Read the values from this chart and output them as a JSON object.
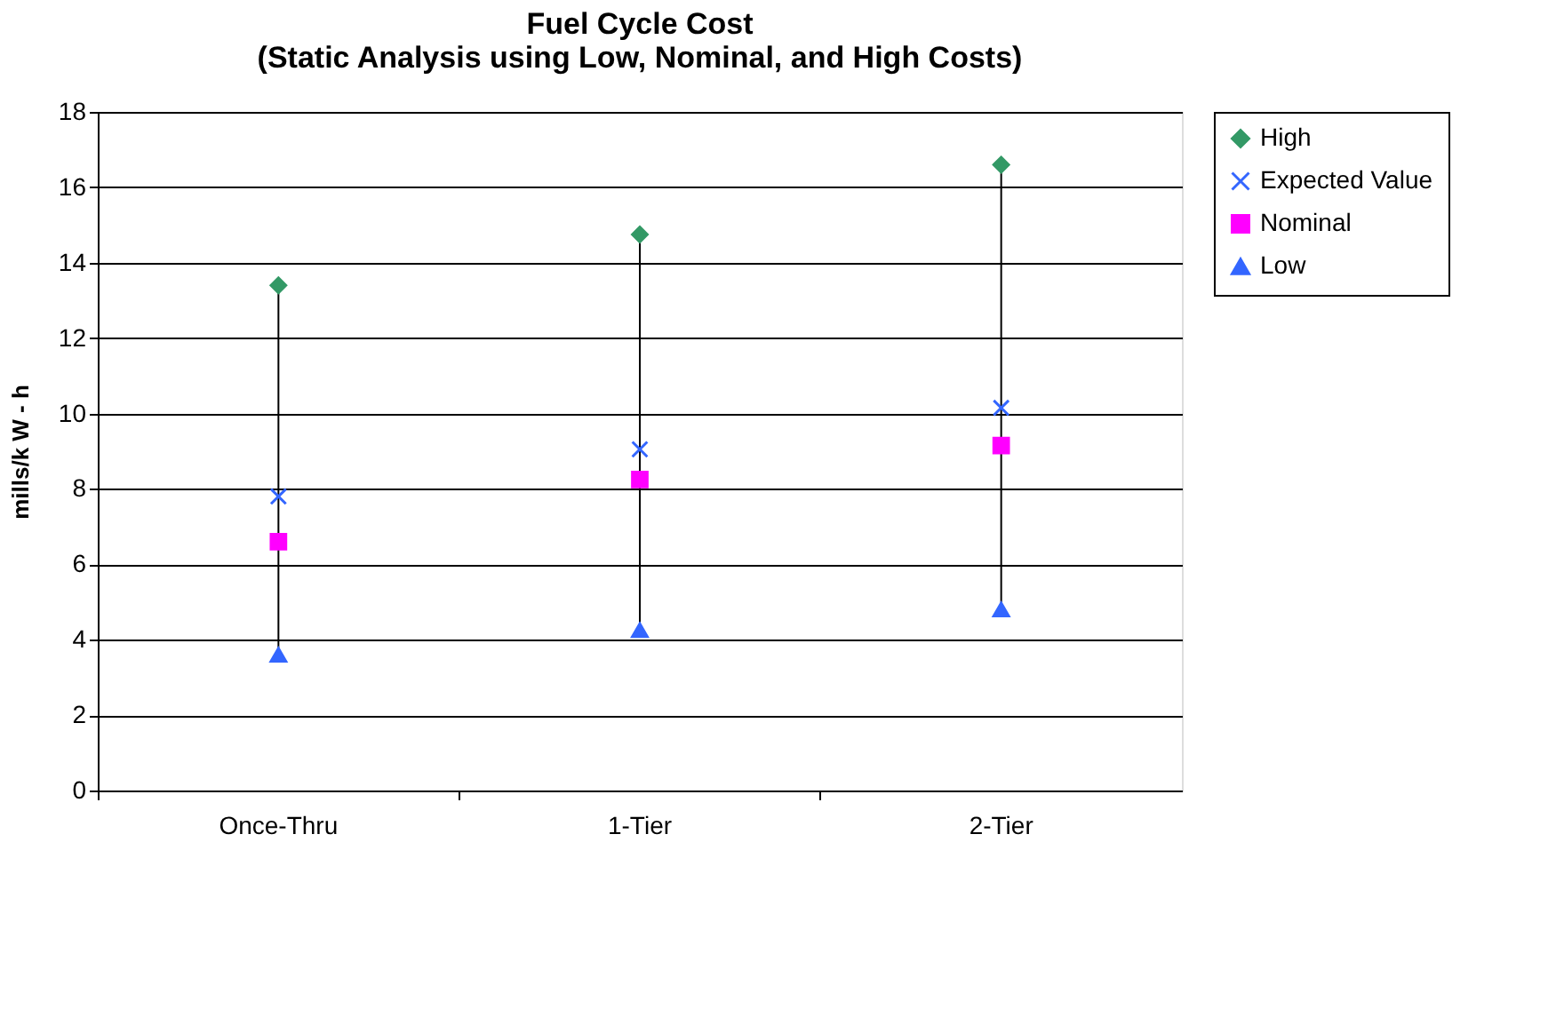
{
  "chart_data": {
    "type": "scatter",
    "title": "Fuel Cycle Cost\n(Static Analysis using Low, Nominal, and High Costs)",
    "ylabel": "mills/k W - h",
    "categories": [
      "Once-Thru",
      "1-Tier",
      "2-Tier"
    ],
    "series": [
      {
        "name": "High",
        "color": "#339966",
        "marker": "diamond",
        "values": [
          13.4,
          14.75,
          16.6
        ]
      },
      {
        "name": "Expected Value",
        "color": "#3366ff",
        "marker": "cross",
        "values": [
          7.8,
          9.05,
          10.15
        ]
      },
      {
        "name": "Nominal",
        "color": "#ff00ff",
        "marker": "square",
        "values": [
          6.6,
          8.25,
          9.15
        ]
      },
      {
        "name": "Low",
        "color": "#3366ff",
        "marker": "triangle",
        "values": [
          3.6,
          4.25,
          4.8
        ]
      }
    ],
    "ylim": [
      0,
      18
    ],
    "yticks": [
      0,
      2,
      4,
      6,
      8,
      10,
      12,
      14,
      16,
      18
    ],
    "grid": "y",
    "legend": "right"
  }
}
